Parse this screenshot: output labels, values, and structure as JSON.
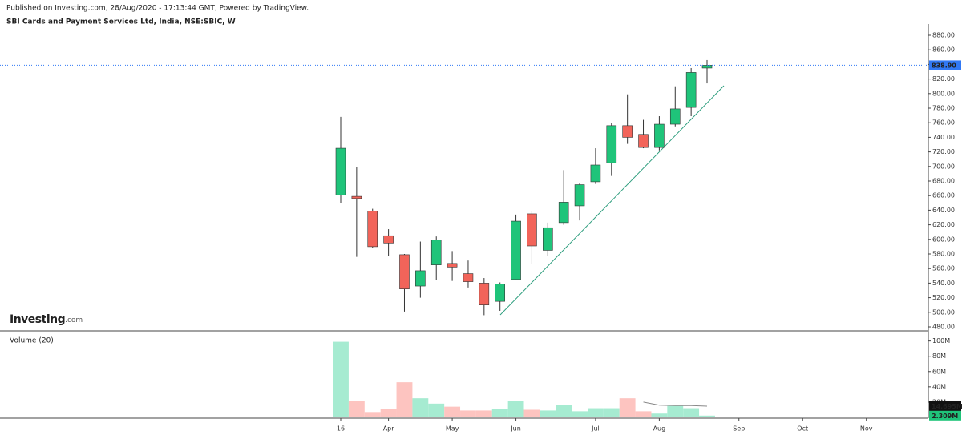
{
  "caption": "Published on Investing.com, 28/Aug/2020 - 17:13:44 GMT, Powered by TradingView.",
  "logo": [
    "Investing",
    ".com"
  ],
  "chart_data": [
    {
      "type": "candlestick",
      "title": "SBI Cards and Payment Services Ltd, India, NSE:SBIC, W",
      "open": [
        661,
        659,
        639,
        605,
        579,
        536,
        565,
        567,
        553,
        540,
        515,
        545,
        635,
        585,
        623,
        646,
        679,
        705,
        756,
        744,
        726,
        758,
        781,
        835,
        null,
        null,
        null,
        null,
        null,
        null,
        null,
        null,
        null,
        null
      ],
      "high": [
        768,
        699,
        642,
        614,
        580,
        597,
        604,
        584,
        571,
        547,
        541,
        634,
        639,
        623,
        695,
        677,
        725,
        760,
        799,
        764,
        769,
        810,
        835,
        846,
        null,
        null,
        null,
        null,
        null,
        null,
        null,
        null,
        null,
        null
      ],
      "low": [
        650,
        576,
        588,
        577,
        501,
        520,
        544,
        543,
        534,
        496,
        502,
        545,
        566,
        577,
        620,
        626,
        676,
        687,
        731,
        725,
        722,
        755,
        769,
        814,
        null,
        null,
        null,
        null,
        null,
        null,
        null,
        null,
        null,
        null
      ],
      "close": [
        725,
        656,
        590,
        595,
        532,
        557,
        599,
        562,
        542,
        510,
        539,
        625,
        591,
        616,
        651,
        675,
        702,
        756,
        740,
        726,
        758,
        779,
        829,
        838.9,
        null,
        null,
        null,
        null,
        null,
        null,
        null,
        null,
        null,
        null
      ],
      "up_color": "#1fc47a",
      "down_color": "#f2645a",
      "last": {
        "value": 838.9,
        "label": "838.90"
      },
      "last_color": "#3179f5",
      "ylim": [
        475.6,
        895.4
      ],
      "yticks": [
        {
          "value": 480,
          "label": "480.00"
        },
        {
          "value": 500,
          "label": "500.00"
        },
        {
          "value": 520,
          "label": "520.00"
        },
        {
          "value": 540,
          "label": "540.00"
        },
        {
          "value": 560,
          "label": "560.00"
        },
        {
          "value": 580,
          "label": "580.00"
        },
        {
          "value": 600,
          "label": "600.00"
        },
        {
          "value": 620,
          "label": "620.00"
        },
        {
          "value": 640,
          "label": "640.00"
        },
        {
          "value": 660,
          "label": "660.00"
        },
        {
          "value": 680,
          "label": "680.00"
        },
        {
          "value": 700,
          "label": "700.00"
        },
        {
          "value": 720,
          "label": "720.00"
        },
        {
          "value": 740,
          "label": "740.00"
        },
        {
          "value": 760,
          "label": "760.00"
        },
        {
          "value": 780,
          "label": "780.00"
        },
        {
          "value": 800,
          "label": "800.00"
        },
        {
          "value": 820,
          "label": "820.00"
        },
        {
          "value": 840,
          "label": "840.00"
        },
        {
          "value": 860,
          "label": "860.00"
        },
        {
          "value": 880,
          "label": "880.00"
        }
      ]
    },
    {
      "type": "bar",
      "title": "Volume (20)",
      "categories": [
        "16",
        null,
        null,
        "Apr",
        null,
        null,
        null,
        "May",
        null,
        null,
        null,
        "Jun",
        null,
        null,
        null,
        null,
        "Jul",
        null,
        null,
        null,
        "Aug",
        null,
        null,
        null,
        null,
        "Sep",
        null,
        null,
        null,
        "Oct",
        null,
        null,
        null,
        "Nov"
      ],
      "values": [
        99000000,
        22000000,
        7000000,
        11000000,
        46000000,
        25000000,
        18000000,
        14000000,
        9000000,
        9000000,
        11000000,
        22000000,
        10000000,
        9000000,
        16000000,
        8000000,
        12000000,
        12000000,
        25000000,
        8000000,
        5000000,
        15000000,
        12000000,
        2309000,
        null,
        null,
        null,
        null,
        null,
        null,
        null,
        null,
        null,
        null
      ],
      "value_labels": [
        null,
        null,
        null,
        null,
        null,
        null,
        null,
        null,
        null,
        null,
        null,
        null,
        null,
        null,
        null,
        null,
        null,
        null,
        null,
        null,
        null,
        null,
        null,
        "2.309M",
        null,
        null,
        null,
        null,
        null,
        null,
        null,
        null,
        null,
        null
      ],
      "up_color": "#a6ebd1",
      "down_color": "#fdc4c0",
      "label_color": "#1fc47a",
      "ma": {
        "color": "#888888",
        "values": [
          null,
          null,
          null,
          null,
          null,
          null,
          null,
          null,
          null,
          null,
          null,
          null,
          null,
          null,
          null,
          null,
          null,
          null,
          null,
          20000000,
          16000000,
          15500000,
          15500000,
          14695000,
          null,
          null,
          null,
          null,
          null,
          null,
          null,
          null,
          null,
          null
        ],
        "value_labels": [
          null,
          null,
          null,
          null,
          null,
          null,
          null,
          null,
          null,
          null,
          null,
          null,
          null,
          null,
          null,
          null,
          null,
          null,
          null,
          null,
          null,
          null,
          null,
          "14.695M",
          null,
          null,
          null,
          null,
          null,
          null,
          null,
          null,
          null,
          null
        ]
      },
      "ylim": [
        0,
        108000000
      ],
      "yticks": [
        {
          "value": 20000000,
          "label": "20M"
        },
        {
          "value": 40000000,
          "label": "40M"
        },
        {
          "value": 60000000,
          "label": "60M"
        },
        {
          "value": 80000000,
          "label": "80M"
        },
        {
          "value": 100000000,
          "label": "100M"
        }
      ]
    }
  ]
}
